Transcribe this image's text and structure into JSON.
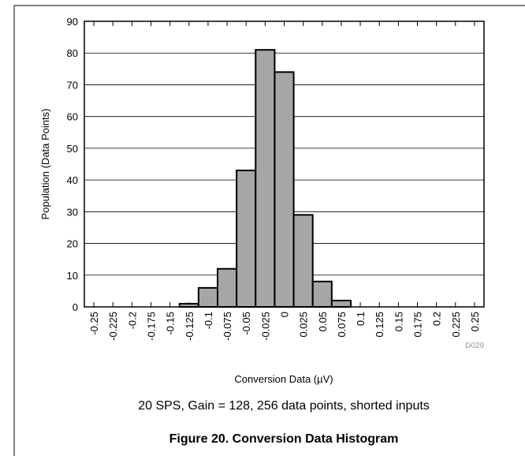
{
  "chart_data": {
    "type": "histogram",
    "title": "Figure 20. Conversion Data Histogram",
    "subtitle": "20 SPS, Gain = 128, 256 data points, shorted inputs",
    "xlabel": "Conversion Data (µV)",
    "ylabel": "Population (Data Points)",
    "figure_id": "D029",
    "bins": [
      -0.2625,
      -0.2375,
      -0.2125,
      -0.1875,
      -0.1625,
      -0.1375,
      -0.1125,
      -0.0875,
      -0.0625,
      -0.0375,
      -0.0125,
      0.0125,
      0.0375,
      0.0625,
      0.0875,
      0.1125,
      0.1375,
      0.1625,
      0.1875,
      0.2125,
      0.2375,
      0.2625
    ],
    "values": [
      0,
      0,
      0,
      0,
      0,
      1,
      6,
      12,
      43,
      81,
      74,
      29,
      8,
      2,
      0,
      0,
      0,
      0,
      0,
      0,
      0
    ],
    "color": "#a6a6a6",
    "xlim": [
      -0.2625,
      0.2625
    ],
    "xticks": [
      -0.25,
      -0.225,
      -0.2,
      -0.175,
      -0.15,
      -0.125,
      -0.1,
      -0.075,
      -0.05,
      -0.025,
      0,
      0.025,
      0.05,
      0.075,
      0.1,
      0.125,
      0.15,
      0.175,
      0.2,
      0.225,
      0.25
    ],
    "ylim": [
      0,
      90
    ],
    "yticks": [
      0,
      10,
      20,
      30,
      40,
      50,
      60,
      70,
      80,
      90
    ],
    "grid": true
  }
}
